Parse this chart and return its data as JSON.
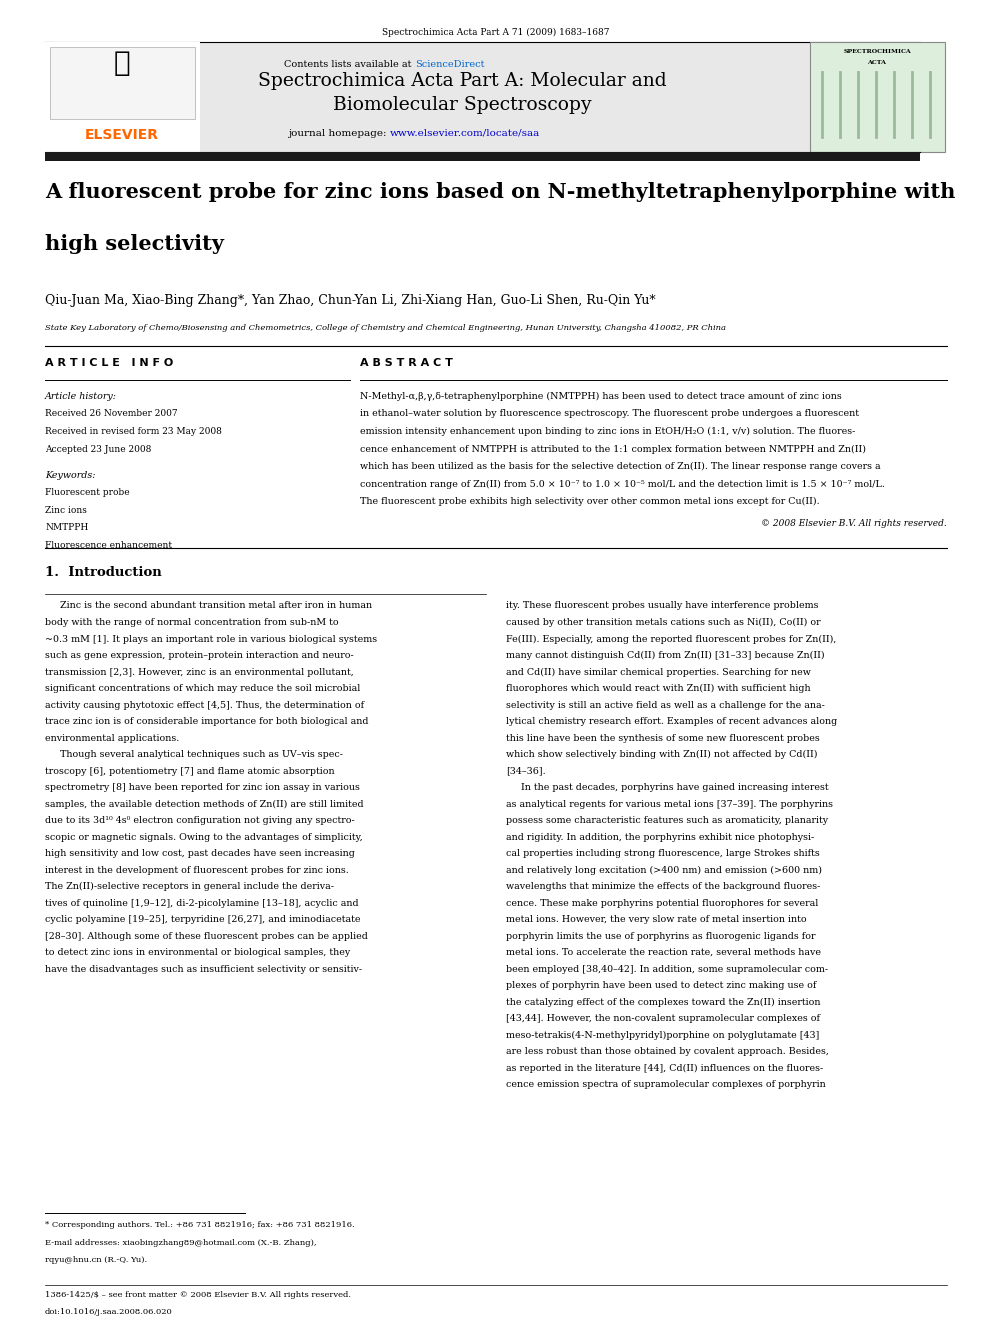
{
  "page_width": 9.92,
  "page_height": 13.23,
  "background_color": "#ffffff",
  "top_journal_ref": "Spectrochimica Acta Part A 71 (2009) 1683–1687",
  "header_bg_color": "#e8e8e8",
  "header_journal_title": "Spectrochimica Acta Part A: Molecular and\nBiomolecular Spectroscopy",
  "header_contents_pre": "Contents lists available at ",
  "header_contents_link": "ScienceDirect",
  "header_homepage_pre": "journal homepage: ",
  "header_homepage_link": "www.elsevier.com/locate/saa",
  "elsevier_color": "#ff6600",
  "sciencedirect_color": "#0066cc",
  "homepage_color": "#0000cc",
  "article_title_line1": "A fluorescent probe for zinc ions based on N-methyltetraphenylporphine with",
  "article_title_line2": "high selectivity",
  "authors": "Qiu-Juan Ma, Xiao-Bing Zhang*, Yan Zhao, Chun-Yan Li, Zhi-Xiang Han, Guo-Li Shen, Ru-Qin Yu*",
  "affiliation": "State Key Laboratory of Chemo/Biosensing and Chemometrics, College of Chemistry and Chemical Engineering, Hunan University, Changsha 410082, PR China",
  "article_info_header": "A R T I C L E   I N F O",
  "abstract_header": "A B S T R A C T",
  "article_history_label": "Article history:",
  "received_1": "Received 26 November 2007",
  "received_2": "Received in revised form 23 May 2008",
  "accepted": "Accepted 23 June 2008",
  "keywords_label": "Keywords:",
  "keywords": [
    "Fluorescent probe",
    "Zinc ions",
    "NMTPPH",
    "Fluorescence enhancement"
  ],
  "abstract_text": "N-Methyl-α,β,γ,δ-tetraphenylporphine (NMTPPH) has been used to detect trace amount of zinc ions\nin ethanol–water solution by fluorescence spectroscopy. The fluorescent probe undergoes a fluorescent\nemission intensity enhancement upon binding to zinc ions in EtOH/H₂O (1:1, v/v) solution. The fluores-\ncence enhancement of NMTPPH is attributed to the 1:1 complex formation between NMTPPH and Zn(II)\nwhich has been utilized as the basis for the selective detection of Zn(II). The linear response range covers a\nconcentration range of Zn(II) from 5.0 × 10⁻⁷ to 1.0 × 10⁻⁵ mol/L and the detection limit is 1.5 × 10⁻⁷ mol/L.\nThe fluorescent probe exhibits high selectivity over other common metal ions except for Cu(II).",
  "copyright": "© 2008 Elsevier B.V. All rights reserved.",
  "section1_title": "1.  Introduction",
  "intro_col1_lines": [
    "     Zinc is the second abundant transition metal after iron in human",
    "body with the range of normal concentration from sub-nM to",
    "~0.3 mM [1]. It plays an important role in various biological systems",
    "such as gene expression, protein–protein interaction and neuro-",
    "transmission [2,3]. However, zinc is an environmental pollutant,",
    "significant concentrations of which may reduce the soil microbial",
    "activity causing phytotoxic effect [4,5]. Thus, the determination of",
    "trace zinc ion is of considerable importance for both biological and",
    "environmental applications.",
    "     Though several analytical techniques such as UV–vis spec-",
    "troscopy [6], potentiometry [7] and flame atomic absorption",
    "spectrometry [8] have been reported for zinc ion assay in various",
    "samples, the available detection methods of Zn(II) are still limited",
    "due to its 3d¹⁰ 4s⁰ electron configuration not giving any spectro-",
    "scopic or magnetic signals. Owing to the advantages of simplicity,",
    "high sensitivity and low cost, past decades have seen increasing",
    "interest in the development of fluorescent probes for zinc ions.",
    "The Zn(II)-selective receptors in general include the deriva-",
    "tives of quinoline [1,9–12], di-2-picolylamine [13–18], acyclic and",
    "cyclic polyamine [19–25], terpyridine [26,27], and iminodiacetate",
    "[28–30]. Although some of these fluorescent probes can be applied",
    "to detect zinc ions in environmental or biological samples, they",
    "have the disadvantages such as insufficient selectivity or sensitiv-"
  ],
  "intro_col2_lines": [
    "ity. These fluorescent probes usually have interference problems",
    "caused by other transition metals cations such as Ni(II), Co(II) or",
    "Fe(III). Especially, among the reported fluorescent probes for Zn(II),",
    "many cannot distinguish Cd(II) from Zn(II) [31–33] because Zn(II)",
    "and Cd(II) have similar chemical properties. Searching for new",
    "fluorophores which would react with Zn(II) with sufficient high",
    "selectivity is still an active field as well as a challenge for the ana-",
    "lytical chemistry research effort. Examples of recent advances along",
    "this line have been the synthesis of some new fluorescent probes",
    "which show selectively binding with Zn(II) not affected by Cd(II)",
    "[34–36].",
    "     In the past decades, porphyrins have gained increasing interest",
    "as analytical regents for various metal ions [37–39]. The porphyrins",
    "possess some characteristic features such as aromaticity, planarity",
    "and rigidity. In addition, the porphyrins exhibit nice photophysi-",
    "cal properties including strong fluorescence, large Strokes shifts",
    "and relatively long excitation (>400 nm) and emission (>600 nm)",
    "wavelengths that minimize the effects of the background fluores-",
    "cence. These make porphyrins potential fluorophores for several",
    "metal ions. However, the very slow rate of metal insertion into",
    "porphyrin limits the use of porphyrins as fluorogenic ligands for",
    "metal ions. To accelerate the reaction rate, several methods have",
    "been employed [38,40–42]. In addition, some supramolecular com-",
    "plexes of porphyrin have been used to detect zinc making use of",
    "the catalyzing effect of the complexes toward the Zn(II) insertion",
    "[43,44]. However, the non-covalent supramolecular complexes of",
    "meso-tetrakis(4-N-methylpyridyl)porphine on polyglutamate [43]",
    "are less robust than those obtained by covalent approach. Besides,",
    "as reported in the literature [44], Cd(II) influences on the fluores-",
    "cence emission spectra of supramolecular complexes of porphyrin"
  ],
  "footnote_star": "* Corresponding authors. Tel.: +86 731 8821916; fax: +86 731 8821916.",
  "footnote_email_1": "E-mail addresses: xiaobingzhang89@hotmail.com (X.-B. Zhang),",
  "footnote_email_2": "rqyu@hnu.cn (R.-Q. Yu).",
  "footer_issn": "1386-1425/$ – see front matter © 2008 Elsevier B.V. All rights reserved.",
  "footer_doi": "doi:10.1016/j.saa.2008.06.020"
}
